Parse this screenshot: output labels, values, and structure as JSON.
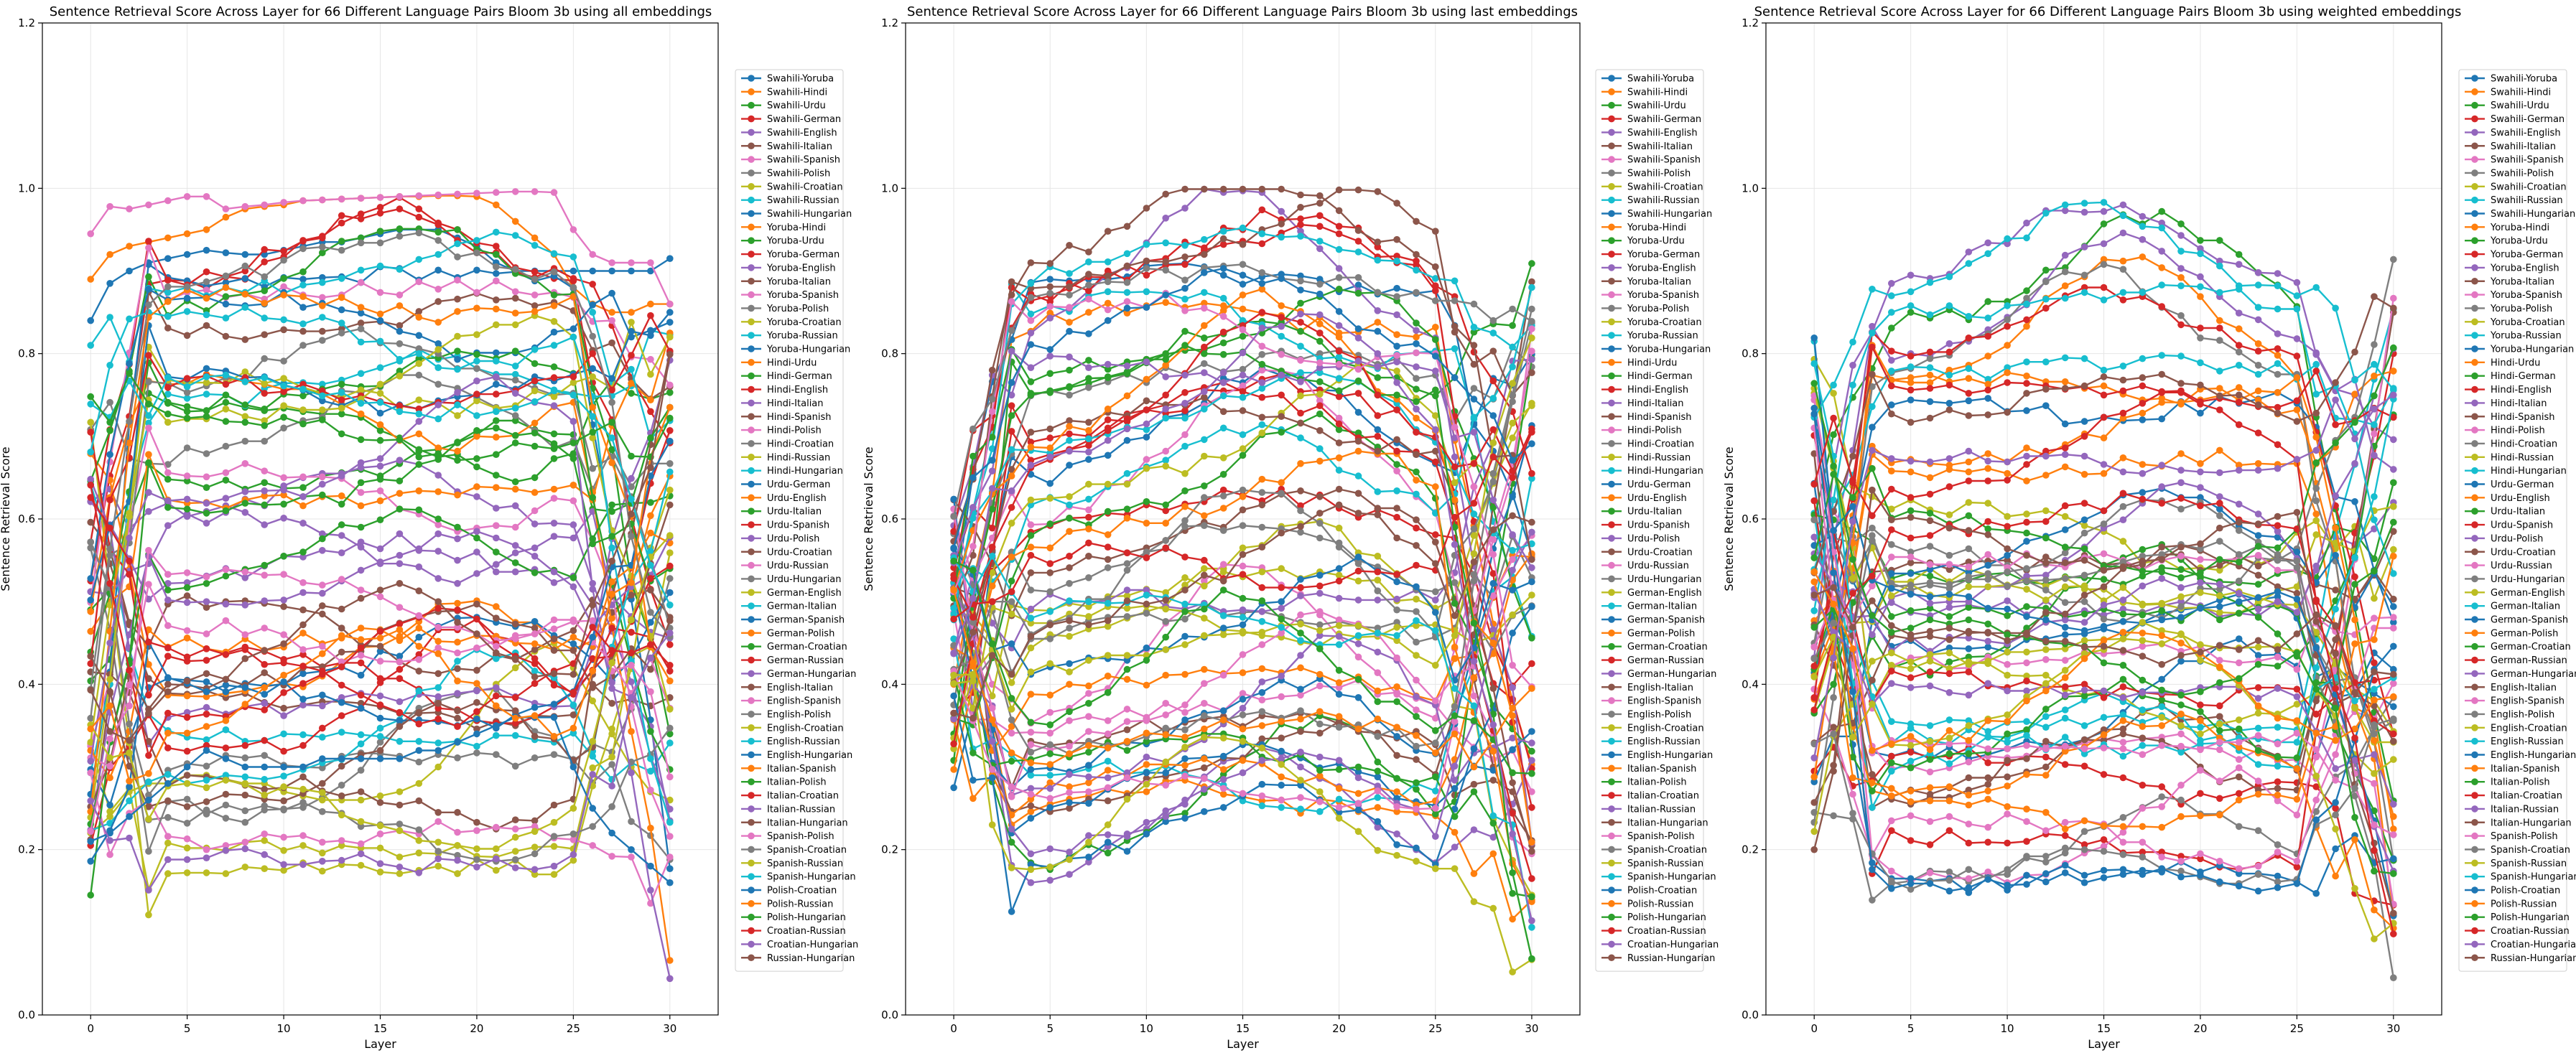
{
  "figure": {
    "ylabel": "Sentence Retrieval Score",
    "xlabel": "Layer",
    "x_ticks": [
      0,
      5,
      10,
      15,
      20,
      25,
      30
    ],
    "y_ticks": [
      0.0,
      0.2,
      0.4,
      0.6,
      0.8,
      1.0,
      1.2
    ]
  },
  "legend_labels": [
    "Swahili-Yoruba",
    "Swahili-Hindi",
    "Swahili-Urdu",
    "Swahili-German",
    "Swahili-English",
    "Swahili-Italian",
    "Swahili-Spanish",
    "Swahili-Polish",
    "Swahili-Croatian",
    "Swahili-Russian",
    "Swahili-Hungarian",
    "Yoruba-Hindi",
    "Yoruba-Urdu",
    "Yoruba-German",
    "Yoruba-English",
    "Yoruba-Italian",
    "Yoruba-Spanish",
    "Yoruba-Polish",
    "Yoruba-Croatian",
    "Yoruba-Russian",
    "Yoruba-Hungarian",
    "Hindi-Urdu",
    "Hindi-German",
    "Hindi-English",
    "Hindi-Italian",
    "Hindi-Spanish",
    "Hindi-Polish",
    "Hindi-Croatian",
    "Hindi-Russian",
    "Hindi-Hungarian",
    "Urdu-German",
    "Urdu-English",
    "Urdu-Italian",
    "Urdu-Spanish",
    "Urdu-Polish",
    "Urdu-Croatian",
    "Urdu-Russian",
    "Urdu-Hungarian",
    "German-English",
    "German-Italian",
    "German-Spanish",
    "German-Polish",
    "German-Croatian",
    "German-Russian",
    "German-Hungarian",
    "English-Italian",
    "English-Spanish",
    "English-Polish",
    "English-Croatian",
    "English-Russian",
    "English-Hungarian",
    "Italian-Spanish",
    "Italian-Polish",
    "Italian-Croatian",
    "Italian-Russian",
    "Italian-Hungarian",
    "Spanish-Polish",
    "Spanish-Croatian",
    "Spanish-Russian",
    "Spanish-Hungarian",
    "Polish-Croatian",
    "Polish-Russian",
    "Polish-Hungarian",
    "Croatian-Russian",
    "Croatian-Hungarian",
    "Russian-Hungarian"
  ],
  "palette": [
    "#1f77b4",
    "#ff7f0e",
    "#2ca02c",
    "#d62728",
    "#9467bd",
    "#8c564b",
    "#e377c2",
    "#7f7f7f",
    "#bcbd22",
    "#17becf"
  ],
  "chart_data": [
    {
      "type": "line",
      "title": "Sentence Retrieval Score Across Layer for 66 Different Language Pairs Bloom 3b using all embeddings",
      "xlabel": "Layer",
      "ylabel": "Sentence Retrieval Score",
      "xlim": [
        -2.5,
        32.5
      ],
      "ylim": [
        0,
        1.2
      ],
      "grid": true,
      "legend_placement": "right",
      "x": [
        0,
        1,
        2,
        3,
        4,
        5,
        6,
        7,
        8,
        9,
        10,
        11,
        12,
        13,
        14,
        15,
        16,
        17,
        18,
        19,
        20,
        21,
        22,
        23,
        24,
        25,
        26,
        27,
        28,
        29,
        30
      ],
      "series_note": "66 series in legend order; representative values read from the plot",
      "mode": "all"
    },
    {
      "type": "line",
      "title": "Sentence Retrieval Score Across Layer for 66 Different Language Pairs Bloom 3b using last embeddings",
      "xlabel": "Layer",
      "ylabel": "Sentence Retrieval Score",
      "xlim": [
        -2.5,
        32.5
      ],
      "ylim": [
        0,
        1.2
      ],
      "grid": true,
      "legend_placement": "right",
      "x": [
        0,
        1,
        2,
        3,
        4,
        5,
        6,
        7,
        8,
        9,
        10,
        11,
        12,
        13,
        14,
        15,
        16,
        17,
        18,
        19,
        20,
        21,
        22,
        23,
        24,
        25,
        26,
        27,
        28,
        29,
        30
      ],
      "series_note": "66 series in legend order; representative values read from the plot",
      "mode": "last"
    },
    {
      "type": "line",
      "title": "Sentence Retrieval Score Across Layer for 66 Different Language Pairs Bloom 3b using weighted embeddings",
      "xlabel": "Layer",
      "ylabel": "Sentence Retrieval Score",
      "xlim": [
        -2.5,
        32.5
      ],
      "ylim": [
        0,
        1.2
      ],
      "grid": true,
      "legend_placement": "right",
      "x": [
        0,
        1,
        2,
        3,
        4,
        5,
        6,
        7,
        8,
        9,
        10,
        11,
        12,
        13,
        14,
        15,
        16,
        17,
        18,
        19,
        20,
        21,
        22,
        23,
        24,
        25,
        26,
        27,
        28,
        29,
        30
      ],
      "series_note": "66 series in legend order; representative values read from the plot",
      "mode": "weighted"
    }
  ],
  "anchor_series": {
    "all": {
      "Swahili-Spanish": [
        0.945,
        0.978,
        0.975,
        0.98,
        0.985,
        0.99,
        0.99,
        0.975,
        0.978,
        0.98,
        0.983,
        0.985,
        0.986,
        0.987,
        0.988,
        0.989,
        0.99,
        0.991,
        0.992,
        0.993,
        0.994,
        0.995,
        0.996,
        0.996,
        0.995,
        0.95,
        0.92,
        0.91,
        0.91,
        0.91,
        0.86
      ],
      "Swahili-Hindi": [
        0.89,
        0.92,
        0.93,
        0.935,
        0.94,
        0.945,
        0.95,
        0.965,
        0.975,
        0.978,
        0.98,
        0.985,
        0.986,
        0.987,
        0.988,
        0.989,
        0.99,
        0.99,
        0.991,
        0.991,
        0.99,
        0.98,
        0.96,
        0.94,
        0.92,
        0.88,
        0.86,
        0.85,
        0.85,
        0.86,
        0.86
      ],
      "Swahili-Yoruba": [
        0.84,
        0.885,
        0.9,
        0.91,
        0.915,
        0.92,
        0.925,
        0.922,
        0.92,
        0.92,
        0.925,
        0.93,
        0.935,
        0.935,
        0.94,
        0.945,
        0.95,
        0.95,
        0.95,
        0.94,
        0.93,
        0.91,
        0.9,
        0.9,
        0.9,
        0.9,
        0.9,
        0.9,
        0.9,
        0.9,
        0.915
      ],
      "Polish-Croatian": [
        0.21,
        0.22,
        0.24,
        0.26,
        0.28,
        0.3,
        0.32,
        0.31,
        0.3,
        0.3,
        0.3,
        0.3,
        0.31,
        0.31,
        0.31,
        0.31,
        0.31,
        0.32,
        0.32,
        0.33,
        0.34,
        0.35,
        0.36,
        0.36,
        0.36,
        0.3,
        0.25,
        0.22,
        0.2,
        0.18,
        0.16
      ],
      "Swahili-Croatian": [
        0.22,
        0.24,
        0.27,
        0.28,
        0.28,
        0.29,
        0.29,
        0.285,
        0.28,
        0.28,
        0.27,
        0.265,
        0.26,
        0.26,
        0.26,
        0.265,
        0.27,
        0.28,
        0.3,
        0.33,
        0.36,
        0.4,
        0.42,
        0.44,
        0.45,
        0.42,
        0.38,
        0.34,
        0.3,
        0.27,
        0.26
      ]
    }
  }
}
